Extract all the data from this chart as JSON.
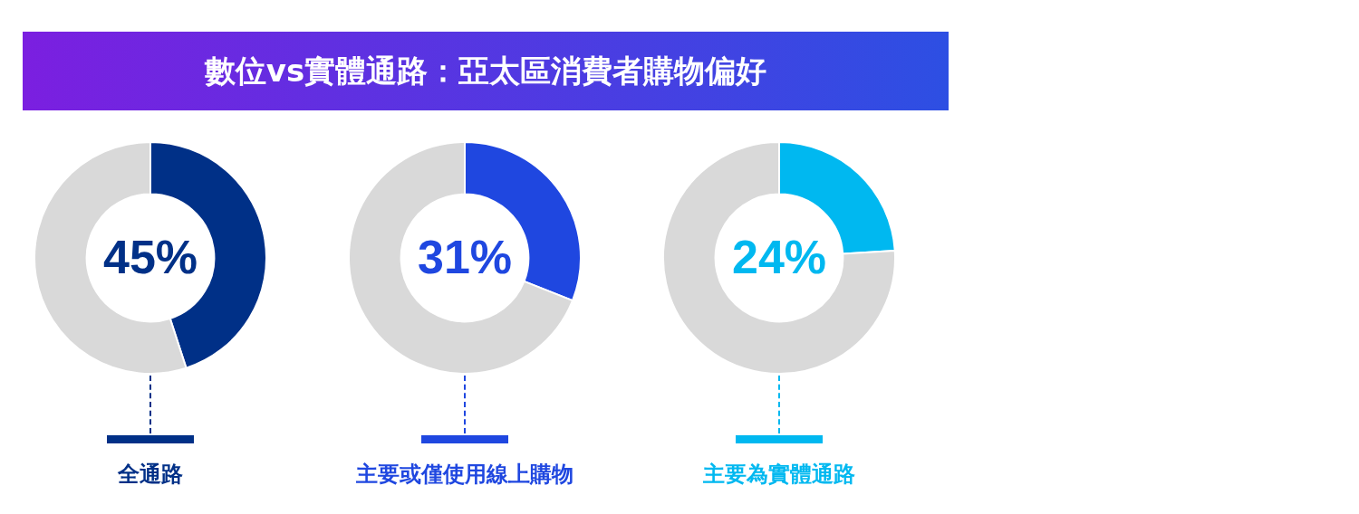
{
  "chart_data": [
    {
      "type": "donut",
      "title": "數位vs實體通路：亞太區消費者購物偏好",
      "categories": [
        "全通路",
        null
      ],
      "values": [
        45,
        55
      ],
      "colors": [
        "#003087",
        "#d9d9d9"
      ],
      "value_labels": [
        "45%",
        null
      ],
      "legend": "bottom"
    },
    {
      "type": "donut",
      "categories": [
        "主要或僅使用線上購物",
        null
      ],
      "values": [
        31,
        69
      ],
      "colors": [
        "#1f47e0",
        "#d9d9d9"
      ],
      "value_labels": [
        "31%",
        null
      ],
      "legend": "bottom"
    },
    {
      "type": "donut",
      "categories": [
        "主要為實體通路",
        null
      ],
      "values": [
        24,
        76
      ],
      "colors": [
        "#00b8f0",
        "#d9d9d9"
      ],
      "value_labels": [
        "24%",
        null
      ],
      "legend": "bottom"
    }
  ]
}
